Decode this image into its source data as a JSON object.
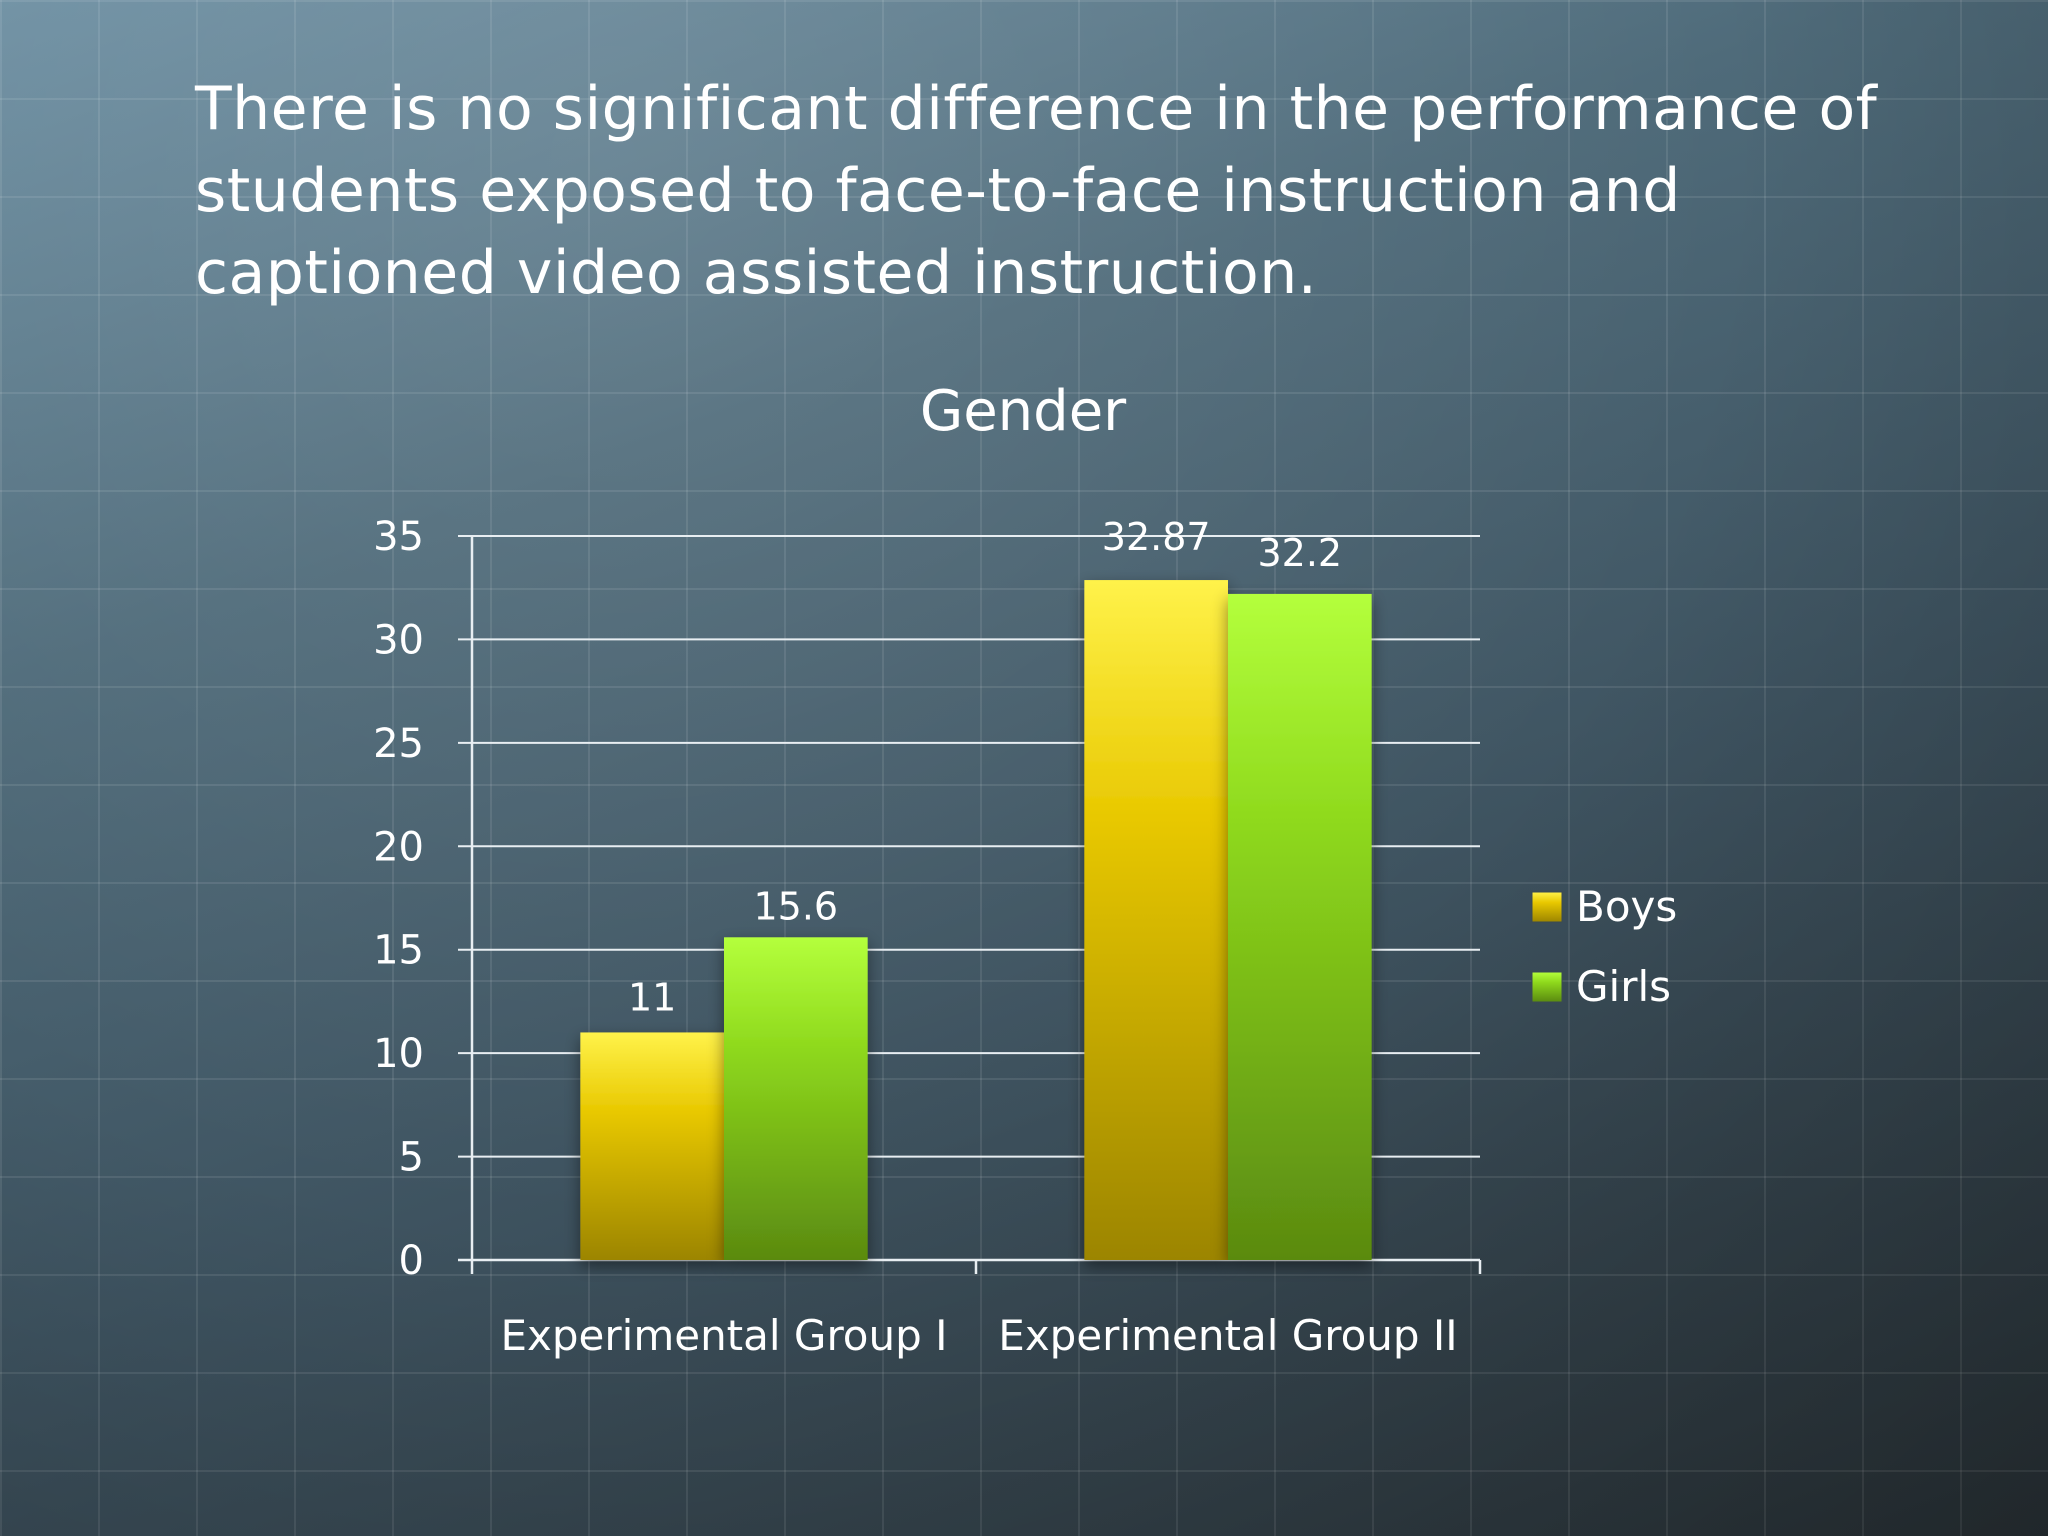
{
  "slide": {
    "title": "There is no significant difference in the performance of students exposed to face-to-face instruction and captioned video assisted instruction."
  },
  "chart_data": {
    "type": "bar",
    "title": "Gender",
    "xlabel": "",
    "ylabel": "",
    "categories": [
      "Experimental Group I",
      "Experimental Group II"
    ],
    "series": [
      {
        "name": "Boys",
        "values": [
          11,
          32.87
        ],
        "color": "#e6c200",
        "value_labels": [
          "11",
          "32.87"
        ]
      },
      {
        "name": "Girls",
        "values": [
          15.6,
          32.2
        ],
        "color": "#8ccc1a",
        "value_labels": [
          "15.6",
          "32.2"
        ]
      }
    ],
    "ylim": [
      0,
      35
    ],
    "yticks": [
      0,
      5,
      10,
      15,
      20,
      25,
      30,
      35
    ],
    "grid": true,
    "legend": "right"
  }
}
